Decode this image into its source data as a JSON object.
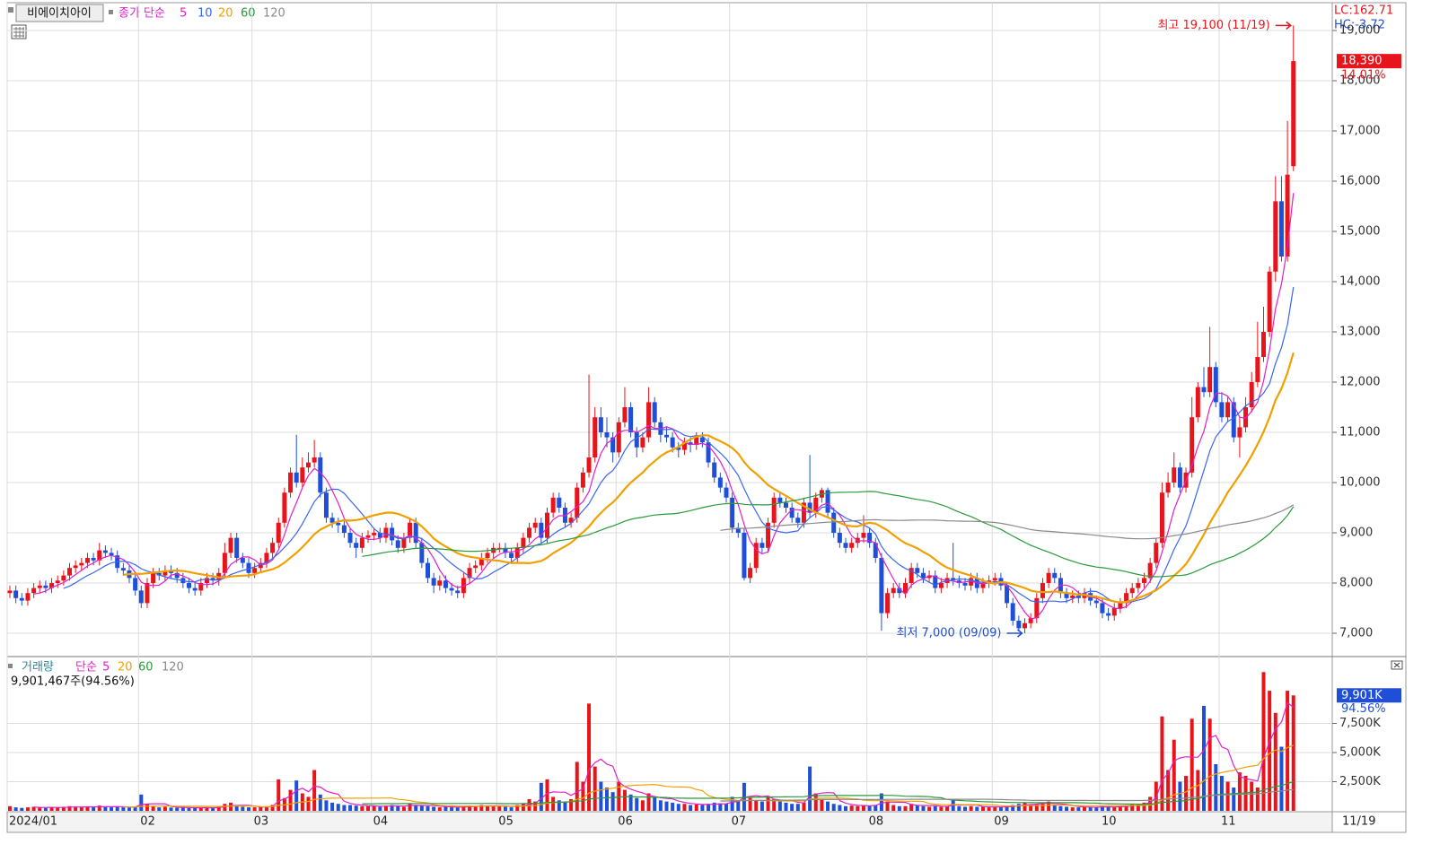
{
  "chart_data": {
    "type": "candlestick",
    "symbol": "비에이치아이",
    "indicator_label": "종가 단순",
    "ma_periods": [
      5,
      10,
      20,
      60,
      120
    ],
    "ma_colors": [
      "#e020c8",
      "#3a66f0",
      "#f0a000",
      "#2a9a3a",
      "#8a8a8a"
    ],
    "up_color": "#e8141c",
    "down_color": "#1f4fd8",
    "categories": [
      "2024/01",
      null,
      null,
      null,
      null,
      null,
      null,
      null,
      null,
      null,
      null,
      null,
      null,
      null,
      null,
      null,
      null,
      null,
      null,
      null,
      null,
      null,
      "02",
      null,
      null,
      null,
      null,
      null,
      null,
      null,
      null,
      null,
      null,
      null,
      null,
      null,
      null,
      null,
      null,
      null,
      null,
      "03",
      null,
      null,
      null,
      null,
      null,
      null,
      null,
      null,
      null,
      null,
      null,
      null,
      null,
      null,
      null,
      null,
      null,
      null,
      null,
      "04",
      null,
      null,
      null,
      null,
      null,
      null,
      null,
      null,
      null,
      null,
      null,
      null,
      null,
      null,
      null,
      null,
      null,
      null,
      null,
      null,
      "05",
      null,
      null,
      null,
      null,
      null,
      null,
      null,
      null,
      null,
      null,
      null,
      null,
      null,
      null,
      null,
      null,
      null,
      null,
      null,
      "06",
      null,
      null,
      null,
      null,
      null,
      null,
      null,
      null,
      null,
      null,
      null,
      null,
      null,
      null,
      null,
      null,
      null,
      null,
      "07",
      null,
      null,
      null,
      null,
      null,
      null,
      null,
      null,
      null,
      null,
      null,
      null,
      null,
      null,
      null,
      null,
      null,
      null,
      null,
      null,
      null,
      null,
      "08",
      null,
      null,
      null,
      null,
      null,
      null,
      null,
      null,
      null,
      null,
      null,
      null,
      null,
      null,
      null,
      null,
      null,
      null,
      null,
      null,
      "09",
      null,
      null,
      null,
      null,
      null,
      null,
      null,
      null,
      null,
      null,
      null,
      null,
      null,
      null,
      null,
      null,
      null,
      "10",
      null,
      null,
      null,
      null,
      null,
      null,
      null,
      null,
      null,
      null,
      null,
      null,
      null,
      null,
      null,
      null,
      null,
      null,
      null,
      "11",
      null,
      null,
      null,
      null,
      null,
      null,
      null,
      null,
      null,
      null,
      null,
      null
    ],
    "open": [
      7800,
      7850,
      7700,
      7650,
      7800,
      7900,
      7950,
      7900,
      8000,
      8050,
      8150,
      8300,
      8350,
      8400,
      8500,
      8450,
      8650,
      8600,
      8550,
      8300,
      8250,
      8100,
      7850,
      7600,
      8000,
      8200,
      8150,
      8250,
      8200,
      8100,
      8000,
      7900,
      7850,
      8000,
      8100,
      8050,
      8200,
      8600,
      8900,
      8500,
      8400,
      8200,
      8300,
      8400,
      8600,
      8800,
      9200,
      9800,
      10200,
      10000,
      10300,
      10400,
      10500,
      9800,
      9300,
      9200,
      9150,
      9000,
      8800,
      8700,
      8900,
      8950,
      9000,
      8900,
      9100,
      8850,
      8700,
      8900,
      9200,
      8800,
      8400,
      8100,
      7950,
      8050,
      7900,
      7850,
      7800,
      8100,
      8300,
      8350,
      8500,
      8600,
      8700,
      8700,
      8600,
      8500,
      8700,
      8900,
      9100,
      9200,
      8900,
      9400,
      9700,
      9500,
      9200,
      9300,
      9900,
      10200,
      10500,
      11300,
      11000,
      10900,
      10600,
      11200,
      11500,
      11000,
      10700,
      10900,
      11600,
      11200,
      10950,
      10900,
      10700,
      10650,
      10800,
      10750,
      10900,
      10800,
      10400,
      10100,
      9900,
      9700,
      9100,
      9000,
      8100,
      8300,
      8800,
      8700,
      9200,
      9700,
      9600,
      9500,
      9300,
      9200,
      9600,
      9400,
      9700,
      9850,
      9400,
      9000,
      8800,
      8700,
      8800,
      8900,
      9000,
      8800,
      8500,
      7400,
      7800,
      7900,
      7800,
      8000,
      8300,
      8200,
      8100,
      8150,
      7900,
      8000,
      8100,
      8050,
      8000,
      7950,
      8100,
      7900,
      8000,
      8050,
      8100,
      7950,
      7600,
      7250,
      7100,
      7200,
      7300,
      7700,
      8000,
      8200,
      8100,
      7800,
      7700,
      7750,
      7700,
      7800,
      7650,
      7600,
      7400,
      7350,
      7500,
      7600,
      7800,
      7900,
      8000,
      8100,
      8400,
      8800,
      9800,
      10000,
      10300,
      9900,
      10200,
      11300,
      11900,
      11800,
      12300,
      11600,
      11300,
      11600,
      10900,
      11100,
      11500,
      12000,
      12500,
      13000,
      14200,
      15600,
      14500,
      16300
    ],
    "high": [
      7950,
      7950,
      7800,
      7900,
      8000,
      8050,
      8050,
      8100,
      8150,
      8250,
      8400,
      8450,
      8500,
      8600,
      8600,
      8800,
      8750,
      8700,
      8650,
      8400,
      8350,
      8200,
      7950,
      8100,
      8300,
      8300,
      8350,
      8350,
      8300,
      8200,
      8100,
      8000,
      8100,
      8200,
      8200,
      8300,
      8800,
      9000,
      9000,
      8600,
      8500,
      8400,
      8500,
      8700,
      8900,
      9300,
      9900,
      10300,
      10950,
      10500,
      10600,
      10850,
      10600,
      9900,
      9400,
      9300,
      9250,
      9100,
      8900,
      9000,
      9050,
      9100,
      9100,
      9200,
      9200,
      8950,
      9000,
      9300,
      9300,
      8900,
      8500,
      8200,
      8150,
      8150,
      8000,
      7950,
      8200,
      8400,
      8450,
      8600,
      8700,
      8800,
      8800,
      8800,
      8700,
      8800,
      9000,
      9200,
      9300,
      9300,
      9500,
      9800,
      9800,
      9600,
      9400,
      10000,
      10300,
      12150,
      11500,
      11500,
      11300,
      11000,
      11300,
      11900,
      11600,
      11100,
      11000,
      11900,
      11700,
      11300,
      11100,
      11000,
      10800,
      10900,
      10900,
      11000,
      11000,
      10900,
      10500,
      10200,
      10000,
      9800,
      9200,
      9100,
      8400,
      8900,
      8900,
      9300,
      9800,
      9800,
      9700,
      9600,
      9400,
      9700,
      10550,
      9800,
      9900,
      9900,
      9500,
      9100,
      8900,
      8900,
      9000,
      9350,
      9100,
      8900,
      8600,
      7900,
      8000,
      8000,
      8100,
      8400,
      8400,
      8300,
      8250,
      8250,
      8100,
      8200,
      8800,
      8150,
      8100,
      8200,
      8200,
      8100,
      8150,
      8200,
      8200,
      8000,
      7700,
      7350,
      7300,
      7400,
      7800,
      8100,
      8300,
      8300,
      8200,
      7900,
      7850,
      7850,
      7900,
      7900,
      7750,
      7700,
      7500,
      7600,
      7700,
      7900,
      8000,
      8100,
      8200,
      8500,
      8900,
      10000,
      10200,
      10600,
      10400,
      10300,
      11700,
      12000,
      12300,
      13100,
      12400,
      11800,
      11700,
      11700,
      11300,
      11700,
      12200,
      13200,
      13500,
      14300,
      16100,
      16100,
      17200,
      19100
    ],
    "low": [
      7700,
      7600,
      7550,
      7550,
      7700,
      7800,
      7800,
      7800,
      7900,
      7950,
      8050,
      8200,
      8250,
      8300,
      8350,
      8350,
      8500,
      8450,
      8200,
      8150,
      8000,
      7750,
      7500,
      7500,
      7900,
      8050,
      8050,
      8100,
      8000,
      7900,
      7800,
      7750,
      7750,
      7900,
      7950,
      7950,
      8100,
      8500,
      8400,
      8300,
      8100,
      8100,
      8200,
      8300,
      8500,
      8700,
      9100,
      9700,
      9900,
      9900,
      10200,
      10300,
      9700,
      9200,
      9100,
      9000,
      8900,
      8700,
      8500,
      8600,
      8800,
      8850,
      8800,
      8800,
      8750,
      8600,
      8600,
      8800,
      8700,
      8300,
      8000,
      7800,
      7850,
      7800,
      7750,
      7700,
      7700,
      8000,
      8200,
      8250,
      8400,
      8500,
      8600,
      8500,
      8400,
      8400,
      8600,
      8800,
      9000,
      8800,
      8800,
      9300,
      9400,
      9100,
      9100,
      9200,
      9800,
      10100,
      10400,
      10900,
      10700,
      10400,
      10500,
      11100,
      10900,
      10500,
      10600,
      10800,
      11100,
      10800,
      10800,
      10600,
      10500,
      10550,
      10600,
      10650,
      10700,
      10300,
      10000,
      9800,
      9600,
      9000,
      8900,
      8050,
      8000,
      8200,
      8600,
      8600,
      9100,
      9500,
      9400,
      9200,
      9100,
      9100,
      9300,
      9300,
      9600,
      9300,
      8900,
      8700,
      8600,
      8600,
      8700,
      8800,
      8700,
      8400,
      7050,
      7300,
      7700,
      7700,
      7700,
      7900,
      8100,
      8000,
      8000,
      7800,
      7800,
      7900,
      7950,
      7900,
      7850,
      7850,
      7800,
      7800,
      7900,
      7950,
      7850,
      7500,
      7150,
      7050,
      7000,
      7100,
      7200,
      7600,
      7900,
      8000,
      7700,
      7600,
      7600,
      7600,
      7600,
      7550,
      7500,
      7300,
      7250,
      7250,
      7400,
      7500,
      7700,
      7800,
      7900,
      8000,
      8300,
      8700,
      9700,
      9900,
      9800,
      9800,
      10100,
      11200,
      11700,
      11700,
      11500,
      11200,
      11200,
      10800,
      10500,
      11000,
      11400,
      11900,
      12400,
      12900,
      14000,
      14400,
      14400,
      16200
    ],
    "close": [
      7850,
      7700,
      7650,
      7800,
      7900,
      7950,
      7900,
      8000,
      8050,
      8150,
      8300,
      8350,
      8400,
      8500,
      8450,
      8650,
      8600,
      8550,
      8300,
      8250,
      8100,
      7850,
      7600,
      8000,
      8200,
      8150,
      8250,
      8200,
      8100,
      8000,
      7900,
      7850,
      8000,
      8100,
      8050,
      8200,
      8600,
      8900,
      8500,
      8400,
      8200,
      8300,
      8400,
      8600,
      8800,
      9200,
      9800,
      10200,
      10000,
      10300,
      10400,
      10500,
      9800,
      9300,
      9200,
      9150,
      9000,
      8800,
      8700,
      8900,
      8950,
      9000,
      8900,
      9100,
      8850,
      8700,
      8900,
      9200,
      8800,
      8400,
      8100,
      7950,
      8050,
      7900,
      7850,
      7800,
      8100,
      8300,
      8350,
      8500,
      8600,
      8700,
      8700,
      8600,
      8500,
      8700,
      8900,
      9100,
      9200,
      8900,
      9400,
      9700,
      9500,
      9200,
      9300,
      9900,
      10200,
      10500,
      11300,
      11000,
      10900,
      10600,
      11200,
      11500,
      11000,
      10700,
      10900,
      11600,
      11200,
      10950,
      10900,
      10700,
      10650,
      10800,
      10750,
      10900,
      10800,
      10400,
      10100,
      9900,
      9700,
      9100,
      9000,
      8100,
      8300,
      8800,
      8700,
      9200,
      9700,
      9600,
      9500,
      9300,
      9200,
      9600,
      9400,
      9700,
      9850,
      9400,
      9000,
      8800,
      8700,
      8800,
      8900,
      9000,
      8800,
      8500,
      7400,
      7800,
      7900,
      7800,
      8000,
      8300,
      8200,
      8100,
      8150,
      7900,
      8000,
      8100,
      8050,
      8000,
      7950,
      8100,
      7900,
      8000,
      8050,
      8100,
      7950,
      7600,
      7250,
      7100,
      7200,
      7300,
      7700,
      8000,
      8200,
      8100,
      7800,
      7700,
      7750,
      7700,
      7800,
      7650,
      7600,
      7400,
      7350,
      7500,
      7600,
      7800,
      7900,
      8000,
      8100,
      8400,
      8800,
      9800,
      10000,
      10300,
      9900,
      10200,
      11300,
      11900,
      11800,
      12300,
      11600,
      11300,
      11600,
      10900,
      11100,
      11500,
      12000,
      12500,
      13000,
      14200,
      15600,
      14500,
      16130,
      18390
    ],
    "ylim": [
      6536,
      19553
    ],
    "yticks": [
      {
        "value": 7000,
        "label": "7,000"
      },
      {
        "value": 8000,
        "label": "8,000"
      },
      {
        "value": 9000,
        "label": "9,000"
      },
      {
        "value": 10000,
        "label": "10,000"
      },
      {
        "value": 11000,
        "label": "11,000"
      },
      {
        "value": 12000,
        "label": "12,000"
      },
      {
        "value": 13000,
        "label": "13,000"
      },
      {
        "value": 14000,
        "label": "14,000"
      },
      {
        "value": 15000,
        "label": "15,000"
      },
      {
        "value": 16000,
        "label": "16,000"
      },
      {
        "value": 17000,
        "label": "17,000"
      },
      {
        "value": 18000,
        "label": "18,000"
      },
      {
        "value": 19000,
        "label": "19,000"
      }
    ],
    "last_price_label": "18,390",
    "last_change_label": "14.01%",
    "lc_label": "LC:162.71",
    "hc_label": "HC:-3.72",
    "high_annotation": "최고 19,100 (11/19)",
    "low_annotation": "최저 7,000 (09/09)",
    "last_date_label": "11/19",
    "volume": {
      "label": "거래량",
      "indicator_label": "단순",
      "ma_periods": [
        5,
        20,
        60,
        120
      ],
      "ma_colors": [
        "#e020c8",
        "#f0a000",
        "#2a9a3a",
        "#8a8a8a"
      ],
      "info": "9,901,467주(94.56%)",
      "last_label": "9,901K",
      "last_ratio_label": "94.56%",
      "values": [
        400,
        300,
        250,
        300,
        350,
        300,
        250,
        300,
        280,
        350,
        400,
        320,
        300,
        380,
        300,
        450,
        350,
        300,
        400,
        300,
        280,
        350,
        1400,
        600,
        400,
        300,
        350,
        280,
        260,
        300,
        250,
        240,
        300,
        280,
        250,
        350,
        600,
        700,
        400,
        350,
        300,
        300,
        350,
        400,
        500,
        2700,
        1100,
        1800,
        2600,
        1500,
        1200,
        3500,
        1400,
        900,
        700,
        600,
        500,
        500,
        450,
        400,
        400,
        400,
        350,
        450,
        500,
        400,
        350,
        600,
        500,
        450,
        400,
        350,
        300,
        350,
        300,
        280,
        400,
        450,
        400,
        500,
        450,
        400,
        400,
        350,
        300,
        500,
        600,
        1000,
        800,
        2400,
        2700,
        1200,
        900,
        800,
        1000,
        4200,
        2500,
        9200,
        3800,
        2500,
        2000,
        1600,
        2500,
        1800,
        1400,
        1100,
        900,
        1500,
        1200,
        900,
        800,
        700,
        600,
        600,
        500,
        550,
        500,
        600,
        700,
        650,
        600,
        1200,
        900,
        2400,
        1100,
        900,
        800,
        1200,
        1000,
        800,
        700,
        600,
        600,
        700,
        3800,
        1500,
        1000,
        800,
        600,
        500,
        400,
        450,
        400,
        500,
        450,
        500,
        1500,
        800,
        500,
        400,
        400,
        600,
        500,
        400,
        350,
        400,
        350,
        400,
        1000,
        400,
        350,
        400,
        350,
        350,
        300,
        300,
        350,
        400,
        500,
        600,
        700,
        500,
        600,
        700,
        800,
        500,
        400,
        350,
        300,
        300,
        350,
        300,
        300,
        400,
        350,
        300,
        400,
        500,
        600,
        600,
        700,
        1200,
        2500,
        8100,
        3500,
        6100,
        2500,
        3000,
        7900,
        3500,
        9000,
        7900,
        4000,
        3000,
        2500,
        2000,
        3300,
        3000,
        2500,
        2000,
        11900,
        10300,
        8400,
        5500,
        10300,
        9901
      ],
      "ylim": [
        0,
        13000
      ],
      "yticks": [
        {
          "value": 2500,
          "label": "2,500K"
        },
        {
          "value": 5000,
          "label": "5,000K"
        },
        {
          "value": 7500,
          "label": "7,500K"
        }
      ]
    }
  }
}
